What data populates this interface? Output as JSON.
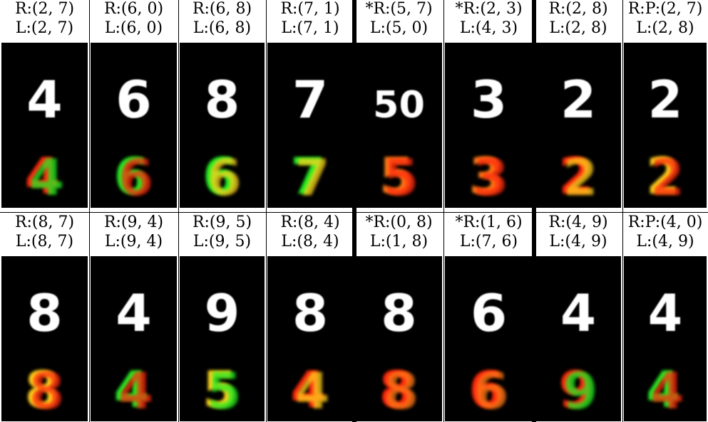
{
  "figure": {
    "rows": [
      {
        "cells": [
          {
            "top": "R:(2, 7)",
            "bottom": "L:(2, 7)",
            "digit_top": "4",
            "digit_bottom": "4"
          },
          {
            "top": "R:(6, 0)",
            "bottom": "L:(6, 0)",
            "digit_top": "6",
            "digit_bottom": "6"
          },
          {
            "top": "R:(6, 8)",
            "bottom": "L:(6, 8)",
            "digit_top": "8",
            "digit_bottom": "6"
          },
          {
            "top": "R:(7, 1)",
            "bottom": "L:(7, 1)",
            "digit_top": "7",
            "digit_bottom": "7"
          },
          {
            "top": "*R:(5, 7)",
            "bottom": "L:(5, 0)",
            "digit_top": "50",
            "digit_bottom": "5"
          },
          {
            "top": "*R:(2, 3)",
            "bottom": "L:(4, 3)",
            "digit_top": "3",
            "digit_bottom": "3"
          },
          {
            "top": "R:(2, 8)",
            "bottom": "L:(2, 8)",
            "digit_top": "2",
            "digit_bottom": "2"
          },
          {
            "top": "R:P:(2, 7)",
            "bottom": "L:(2, 8)",
            "digit_top": "2",
            "digit_bottom": "2"
          }
        ]
      },
      {
        "cells": [
          {
            "top": "R:(8, 7)",
            "bottom": "L:(8, 7)",
            "digit_top": "8",
            "digit_bottom": "8"
          },
          {
            "top": "R:(9, 4)",
            "bottom": "L:(9, 4)",
            "digit_top": "4",
            "digit_bottom": "4"
          },
          {
            "top": "R:(9, 5)",
            "bottom": "L:(9, 5)",
            "digit_top": "9",
            "digit_bottom": "5"
          },
          {
            "top": "R:(8, 4)",
            "bottom": "L:(8, 4)",
            "digit_top": "8",
            "digit_bottom": "4"
          },
          {
            "top": "*R:(0, 8)",
            "bottom": "L:(1, 8)",
            "digit_top": "8",
            "digit_bottom": "8"
          },
          {
            "top": "*R:(1, 6)",
            "bottom": "L:(7, 6)",
            "digit_top": "6",
            "digit_bottom": "6"
          },
          {
            "top": "R:(4, 9)",
            "bottom": "L:(4, 9)",
            "digit_top": "4",
            "digit_bottom": "9"
          },
          {
            "top": "R:P:(4, 0)",
            "bottom": "L:(4, 9)",
            "digit_top": "4",
            "digit_bottom": "4"
          }
        ]
      }
    ],
    "colors": {
      "panel_bg": "#000000",
      "input_digit": "#ffffff",
      "recon_red": "#ff2a10",
      "recon_green": "#22ee22",
      "recon_yellow": "#ffd21a",
      "recon_orange": "#ff7a18"
    }
  }
}
